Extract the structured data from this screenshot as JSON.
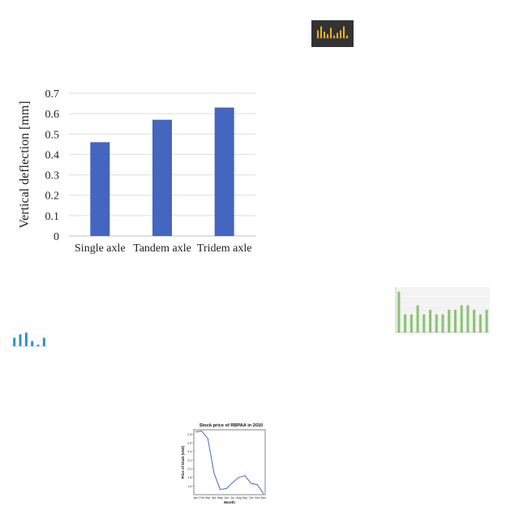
{
  "chart_data": [
    {
      "type": "bar",
      "title": "",
      "xlabel": "",
      "ylabel": "Vertical deflection [mm]",
      "categories": [
        "Single axle",
        "Tandem axle",
        "Tridem axle"
      ],
      "values": [
        0.46,
        0.57,
        0.63
      ],
      "ylim": [
        0,
        0.7
      ],
      "yticks": [
        "0",
        "0.1",
        "0.2",
        "0.3",
        "0.4",
        "0.5",
        "0.6",
        "0.7"
      ],
      "grid": true,
      "bar_color": "#4466c0"
    },
    {
      "type": "line",
      "title": "Stock price of RBPAA in 2010",
      "xlabel": "Month",
      "ylabel": "Price of Stock (USD)",
      "categories": [
        "Jan",
        "Feb",
        "Mar",
        "Apr",
        "May",
        "Jun",
        "Jul",
        "Aug",
        "Sep",
        "Oct",
        "Nov",
        "Dec"
      ],
      "values": [
        2.85,
        2.87,
        2.7,
        1.9,
        1.52,
        1.54,
        1.68,
        1.8,
        1.84,
        1.66,
        1.63,
        1.42
      ],
      "ylim": [
        1.4,
        2.9
      ],
      "yticks": [
        "1.6",
        "1.8",
        "2.0",
        "2.2",
        "2.4",
        "2.6",
        "2.8"
      ],
      "line_color": "#3a6bc4"
    },
    {
      "type": "bar",
      "values": [
        9,
        4,
        4,
        6,
        4,
        5,
        4,
        4,
        5,
        5,
        6,
        6,
        5,
        4,
        5
      ],
      "ylim": [
        0,
        10
      ],
      "bar_color": "#8bc474"
    },
    {
      "type": "bar",
      "values": [
        6,
        9,
        5,
        3,
        8,
        2,
        4,
        6,
        9,
        2
      ],
      "ylim": [
        0,
        10
      ],
      "bar_color": "#f2b320",
      "background": "#333333"
    },
    {
      "type": "bar",
      "values": [
        5,
        7,
        8,
        3,
        1,
        5
      ],
      "ylim": [
        0,
        10
      ],
      "bar_color": "#2b8fd0"
    }
  ]
}
